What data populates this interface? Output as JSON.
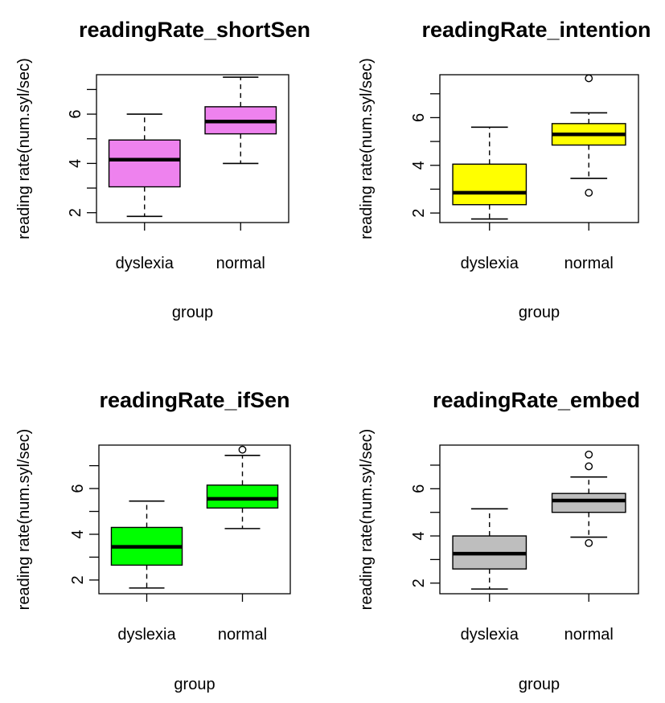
{
  "colors": {
    "box_outline": "#000000",
    "panel_background": "#ffffff"
  },
  "chart_data": [
    {
      "type": "boxplot",
      "title": "readingRate_shortSen",
      "xlabel": "group",
      "ylabel": "reading rate(num.syl/sec)",
      "categories": [
        "dyslexia",
        "normal"
      ],
      "yticks": [
        2,
        4,
        6
      ],
      "ylim": [
        1.6,
        7.6
      ],
      "fill_color": "#ee82ee",
      "boxes": [
        {
          "group": "dyslexia",
          "min": 1.85,
          "q1": 3.05,
          "median": 4.15,
          "q3": 4.95,
          "max": 6.0,
          "outliers": []
        },
        {
          "group": "normal",
          "min": 4.0,
          "q1": 5.2,
          "median": 5.7,
          "q3": 6.3,
          "max": 7.5,
          "outliers": []
        }
      ],
      "grid": false
    },
    {
      "type": "boxplot",
      "title": "readingRate_intention",
      "xlabel": "group",
      "ylabel": "reading rate(num.syl/sec)",
      "categories": [
        "dyslexia",
        "normal"
      ],
      "yticks": [
        2,
        4,
        6
      ],
      "ylim": [
        1.6,
        7.8
      ],
      "fill_color": "#ffff00",
      "boxes": [
        {
          "group": "dyslexia",
          "min": 1.75,
          "q1": 2.35,
          "median": 2.85,
          "q3": 4.05,
          "max": 5.6,
          "outliers": []
        },
        {
          "group": "normal",
          "min": 3.45,
          "q1": 4.85,
          "median": 5.3,
          "q3": 5.75,
          "max": 6.2,
          "outliers": [
            2.85,
            7.65
          ]
        }
      ],
      "grid": false
    },
    {
      "type": "boxplot",
      "title": "readingRate_ifSen",
      "xlabel": "group",
      "ylabel": "reading rate(num.syl/sec)",
      "categories": [
        "dyslexia",
        "normal"
      ],
      "yticks": [
        2,
        4,
        6
      ],
      "ylim": [
        1.4,
        7.9
      ],
      "fill_color": "#00ff00",
      "boxes": [
        {
          "group": "dyslexia",
          "min": 1.65,
          "q1": 2.65,
          "median": 3.45,
          "q3": 4.3,
          "max": 5.45,
          "outliers": []
        },
        {
          "group": "normal",
          "min": 4.25,
          "q1": 5.15,
          "median": 5.55,
          "q3": 6.15,
          "max": 7.45,
          "outliers": [
            7.7
          ]
        }
      ],
      "grid": false
    },
    {
      "type": "boxplot",
      "title": "readingRate_embed",
      "xlabel": "group",
      "ylabel": "reading rate(num.syl/sec)",
      "categories": [
        "dyslexia",
        "normal"
      ],
      "yticks": [
        2,
        4,
        6
      ],
      "ylim": [
        1.55,
        7.85
      ],
      "fill_color": "#bebebe",
      "boxes": [
        {
          "group": "dyslexia",
          "min": 1.75,
          "q1": 2.6,
          "median": 3.25,
          "q3": 4.0,
          "max": 5.15,
          "outliers": []
        },
        {
          "group": "normal",
          "min": 3.95,
          "q1": 5.0,
          "median": 5.5,
          "q3": 5.8,
          "max": 6.5,
          "outliers": [
            3.7,
            6.95,
            7.45
          ]
        }
      ],
      "grid": false
    }
  ]
}
